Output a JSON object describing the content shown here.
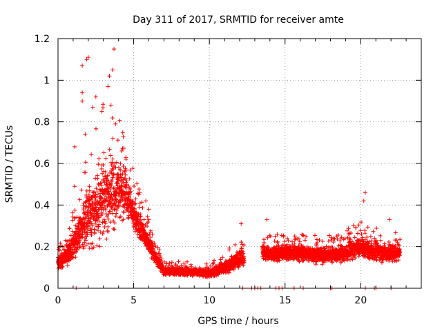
{
  "chart_data": {
    "type": "scatter",
    "title": "Day 311 of 2017, SRMTID for receiver amte",
    "xlabel": "GPS time / hours",
    "ylabel": "SRMTID / TECUs",
    "xlim": [
      0,
      24
    ],
    "ylim": [
      0,
      1.2
    ],
    "xticks": [
      0,
      5,
      10,
      15,
      20
    ],
    "yticks": [
      0,
      0.2,
      0.4,
      0.6,
      0.8,
      1,
      1.2
    ],
    "xtick_labels": [
      "0",
      "5",
      "10",
      "15",
      "20"
    ],
    "ytick_labels": [
      "0",
      "0.2",
      "0.4",
      "0.6",
      "0.8",
      "1",
      "1.2"
    ],
    "grid": true,
    "marker": "+",
    "color": "#ff0000",
    "series": [
      {
        "name": "SRMTID",
        "profile": {
          "x": [
            0.0,
            0.5,
            1.0,
            1.5,
            2.0,
            2.5,
            3.0,
            3.5,
            4.0,
            4.5,
            5.0,
            5.5,
            6.0,
            6.5,
            7.0,
            8.0,
            9.0,
            10.0,
            11.0,
            12.0,
            13.5,
            14.0,
            15.0,
            16.0,
            17.0,
            18.0,
            19.0,
            20.0,
            20.5,
            21.0,
            21.5,
            22.0,
            22.6
          ],
          "y_center": [
            0.12,
            0.15,
            0.2,
            0.28,
            0.35,
            0.38,
            0.42,
            0.45,
            0.47,
            0.45,
            0.36,
            0.28,
            0.22,
            0.14,
            0.08,
            0.08,
            0.08,
            0.07,
            0.1,
            0.14,
            0.17,
            0.16,
            0.17,
            0.17,
            0.16,
            0.16,
            0.17,
            0.2,
            0.18,
            0.18,
            0.17,
            0.17,
            0.17
          ],
          "y_spread": [
            0.05,
            0.07,
            0.12,
            0.18,
            0.22,
            0.25,
            0.3,
            0.32,
            0.22,
            0.18,
            0.13,
            0.1,
            0.08,
            0.05,
            0.03,
            0.03,
            0.03,
            0.03,
            0.05,
            0.06,
            0.07,
            0.06,
            0.06,
            0.06,
            0.06,
            0.06,
            0.07,
            0.08,
            0.07,
            0.07,
            0.07,
            0.07,
            0.06
          ]
        },
        "gaps": [
          [
            12.3,
            13.5
          ]
        ],
        "notable_points": [
          {
            "x": 0.5,
            "y": 0.23
          },
          {
            "x": 1.1,
            "y": 0.49
          },
          {
            "x": 1.1,
            "y": 0.68
          },
          {
            "x": 1.6,
            "y": 1.07
          },
          {
            "x": 1.6,
            "y": 0.94
          },
          {
            "x": 1.6,
            "y": 0.9
          },
          {
            "x": 1.9,
            "y": 1.1
          },
          {
            "x": 2.0,
            "y": 1.11
          },
          {
            "x": 1.8,
            "y": 0.74
          },
          {
            "x": 2.3,
            "y": 0.87
          },
          {
            "x": 2.5,
            "y": 0.92
          },
          {
            "x": 2.9,
            "y": 0.85
          },
          {
            "x": 3.3,
            "y": 0.97
          },
          {
            "x": 3.4,
            "y": 1.02
          },
          {
            "x": 3.6,
            "y": 1.05
          },
          {
            "x": 3.7,
            "y": 1.15
          },
          {
            "x": 3.5,
            "y": 0.88
          },
          {
            "x": 3.8,
            "y": 0.79
          },
          {
            "x": 4.2,
            "y": 0.66
          },
          {
            "x": 4.1,
            "y": 0.57
          },
          {
            "x": 4.5,
            "y": 0.62
          },
          {
            "x": 5.8,
            "y": 0.42
          },
          {
            "x": 6.0,
            "y": 0.38
          },
          {
            "x": 12.1,
            "y": 0.31
          },
          {
            "x": 13.8,
            "y": 0.33
          },
          {
            "x": 20.3,
            "y": 0.46
          },
          {
            "x": 20.2,
            "y": 0.42
          },
          {
            "x": 21.9,
            "y": 0.33
          }
        ],
        "zero_values_x": [
          1.2,
          12.2,
          12.8,
          13.0,
          13.2,
          13.4,
          14.4,
          14.6,
          14.8,
          15.6,
          16.2,
          18.0,
          18.1,
          20.3,
          20.9,
          21.0,
          22.0
        ]
      }
    ]
  }
}
